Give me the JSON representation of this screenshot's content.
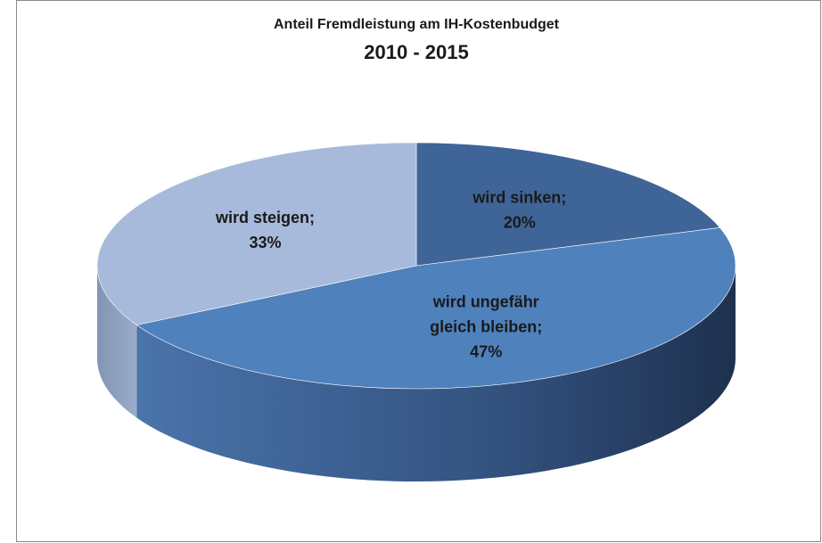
{
  "chart_data": {
    "type": "pie3d",
    "title": "Anteil Fremdleistung am IH-Kostenbudget",
    "subtitle": "2010 - 2015",
    "categories": [
      "wird sinken;",
      "wird ungefähr gleich bleiben;",
      "wird steigen;"
    ],
    "values": [
      20,
      47,
      33
    ],
    "value_labels": [
      "20%",
      "47%",
      "33%"
    ],
    "colors": [
      "#3f6497",
      "#4f81bd",
      "#a8badb"
    ]
  }
}
